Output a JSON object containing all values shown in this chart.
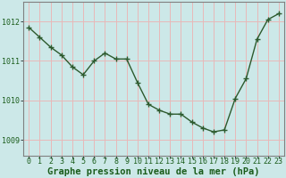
{
  "x": [
    0,
    1,
    2,
    3,
    4,
    5,
    6,
    7,
    8,
    9,
    10,
    11,
    12,
    13,
    14,
    15,
    16,
    17,
    18,
    19,
    20,
    21,
    22,
    23
  ],
  "y": [
    1011.85,
    1011.6,
    1011.35,
    1011.15,
    1010.85,
    1010.65,
    1011.0,
    1011.2,
    1011.05,
    1011.05,
    1010.45,
    1009.9,
    1009.75,
    1009.65,
    1009.65,
    1009.45,
    1009.3,
    1009.2,
    1009.25,
    1010.05,
    1010.55,
    1011.55,
    1012.05,
    1012.2
  ],
  "line_color": "#2d5a2d",
  "marker": "+",
  "marker_size": 4,
  "marker_lw": 1.0,
  "background_color": "#cce8e8",
  "grid_color": "#e8b8b8",
  "xlabel": "Graphe pression niveau de la mer (hPa)",
  "xlabel_fontsize": 7.5,
  "xlabel_color": "#1a5c1a",
  "ylabel_ticks": [
    1009,
    1010,
    1011,
    1012
  ],
  "xlim": [
    -0.5,
    23.5
  ],
  "ylim": [
    1008.6,
    1012.5
  ],
  "xtick_labels": [
    "0",
    "1",
    "2",
    "3",
    "4",
    "5",
    "6",
    "7",
    "8",
    "9",
    "10",
    "11",
    "12",
    "13",
    "14",
    "15",
    "16",
    "17",
    "18",
    "19",
    "20",
    "21",
    "22",
    "23"
  ],
  "tick_fontsize": 6.0,
  "tick_color": "#1a5c1a",
  "spine_color": "#808080",
  "line_width": 1.0
}
